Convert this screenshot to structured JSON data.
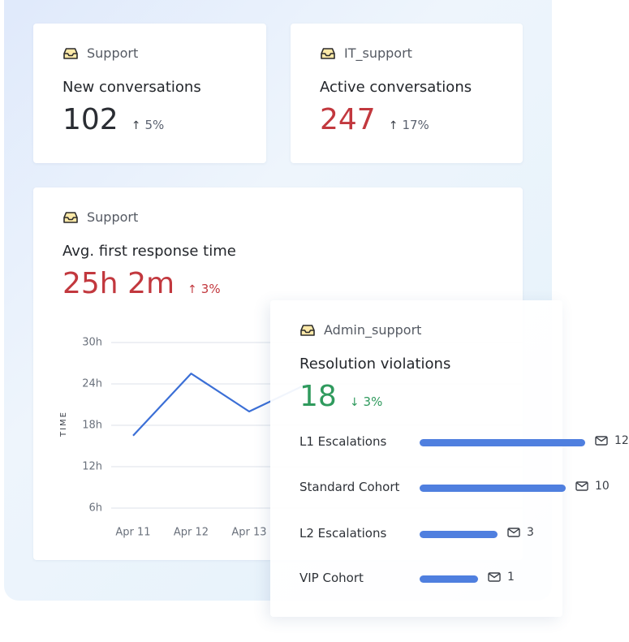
{
  "cards": [
    {
      "inbox": "Support",
      "title": "New conversations",
      "value": "102",
      "change": "5%",
      "direction": "up",
      "tone": "neutral"
    },
    {
      "inbox": "IT_support",
      "title": "Active conversations",
      "value": "247",
      "change": "17%",
      "direction": "up",
      "tone": "neutral-red"
    },
    {
      "inbox": "Support",
      "title": "Avg. first response time",
      "value": "25h 2m",
      "change": "3%",
      "direction": "up",
      "tone": "red",
      "chart": {
        "type": "line",
        "ylabel": "TIME",
        "categories": [
          "Apr 11",
          "Apr 12",
          "Apr 13",
          null
        ],
        "values": [
          16.5,
          25.5,
          20,
          24
        ],
        "color": "#3b6fd6",
        "ylim": [
          6,
          30
        ],
        "grid": true,
        "yticks": [
          {
            "value": 30,
            "label": "30h"
          },
          {
            "value": 24,
            "label": "24h"
          },
          {
            "value": 18,
            "label": "18h"
          },
          {
            "value": 12,
            "label": "12h"
          },
          {
            "value": 6,
            "label": "6h"
          }
        ]
      }
    },
    {
      "inbox": "Admin_support",
      "title": "Resolution violations",
      "value": "18",
      "change": "3%",
      "direction": "down",
      "tone": "green",
      "breakdown": {
        "type": "bar",
        "categories": [
          "L1 Escalations",
          "Standard Cohort",
          "L2 Escalations",
          "VIP Cohort"
        ],
        "values": [
          12,
          10,
          3,
          1
        ],
        "color": "#4f7fdf"
      }
    }
  ]
}
